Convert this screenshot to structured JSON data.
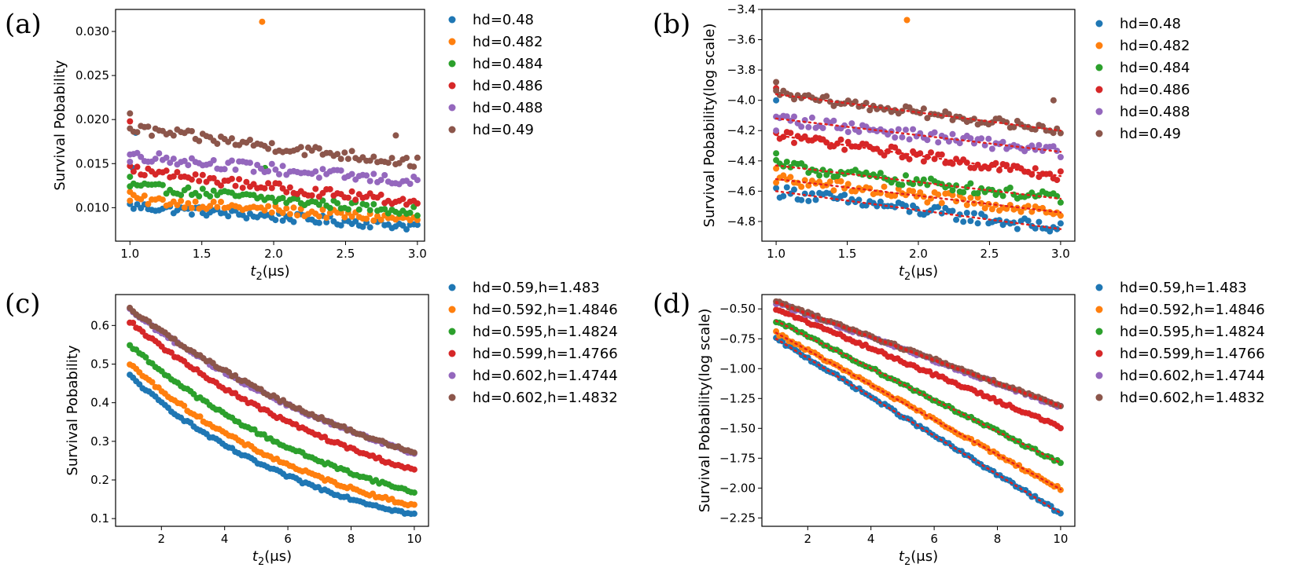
{
  "colors": [
    "#1f77b4",
    "#ff7f0e",
    "#2ca02c",
    "#d62728",
    "#9467bd",
    "#8c564b"
  ],
  "chart_data": [
    {
      "id": "a",
      "panel_label": "(a)",
      "type": "scatter",
      "xlabel_main": "t",
      "xlabel_sub": "2",
      "xlabel_unit": "(μs)",
      "ylabel": "Survival Pobability",
      "xlim": [
        0.9,
        3.05
      ],
      "ylim": [
        0.0062,
        0.0325
      ],
      "xticks": [
        "1.0",
        "1.5",
        "2.0",
        "2.5",
        "3.0"
      ],
      "yticks": [
        "0.010",
        "0.015",
        "0.020",
        "0.025",
        "0.030"
      ],
      "legend_position": "right",
      "x_range": [
        1.0,
        3.0
      ],
      "n_points": 80,
      "series": [
        {
          "name": "hd=0.48",
          "start": 0.0102,
          "end": 0.0079,
          "noise": 0.0005,
          "outliers": [
            [
              1.02,
              0.0145
            ],
            [
              1.04,
              0.0185
            ]
          ]
        },
        {
          "name": "hd=0.482",
          "start": 0.011,
          "end": 0.0086,
          "noise": 0.0005,
          "outliers": [
            [
              1.92,
              0.0311
            ],
            [
              1.0,
              0.0118
            ]
          ]
        },
        {
          "name": "hd=0.484",
          "start": 0.0125,
          "end": 0.0096,
          "noise": 0.0005,
          "outliers": [
            [
              1.0,
              0.0135
            ],
            [
              1.94,
              0.0145
            ]
          ]
        },
        {
          "name": "hd=0.486",
          "start": 0.0143,
          "end": 0.0106,
          "noise": 0.0005,
          "outliers": [
            [
              1.0,
              0.0198
            ]
          ]
        },
        {
          "name": "hd=0.488",
          "start": 0.016,
          "end": 0.0129,
          "noise": 0.0006,
          "outliers": [
            [
              1.0,
              0.0152
            ]
          ]
        },
        {
          "name": "hd=0.49",
          "start": 0.019,
          "end": 0.0151,
          "noise": 0.0006,
          "outliers": [
            [
              1.0,
              0.0207
            ],
            [
              2.85,
              0.0182
            ]
          ]
        }
      ]
    },
    {
      "id": "b",
      "panel_label": "(b)",
      "type": "scatter",
      "xlabel_main": "t",
      "xlabel_sub": "2",
      "xlabel_unit": "(μs)",
      "ylabel": "Survival Pobability(log scale)",
      "xlim": [
        0.9,
        3.1
      ],
      "ylim": [
        -4.93,
        -3.4
      ],
      "xticks": [
        "1.0",
        "1.5",
        "2.0",
        "2.5",
        "3.0"
      ],
      "yticks": [
        "−4.8",
        "−4.6",
        "−4.4",
        "−4.2",
        "−4.0",
        "−3.8",
        "−3.6",
        "−3.4"
      ],
      "legend_position": "right",
      "fit_lines": "dotted red",
      "x_range": [
        1.0,
        3.0
      ],
      "n_points": 80,
      "series": [
        {
          "name": "hd=0.48",
          "start": -4.6,
          "end": -4.85,
          "noise": 0.04,
          "outliers": [
            [
              1.0,
              -4.0
            ]
          ]
        },
        {
          "name": "hd=0.482",
          "start": -4.52,
          "end": -4.74,
          "noise": 0.04,
          "outliers": [
            [
              1.92,
              -3.47
            ],
            [
              1.0,
              -4.45
            ]
          ]
        },
        {
          "name": "hd=0.484",
          "start": -4.43,
          "end": -4.65,
          "noise": 0.035,
          "outliers": [
            [
              1.0,
              -4.35
            ]
          ]
        },
        {
          "name": "hd=0.486",
          "start": -4.23,
          "end": -4.5,
          "noise": 0.035,
          "outliers": [
            [
              1.0,
              -3.92
            ]
          ]
        },
        {
          "name": "hd=0.488",
          "start": -4.12,
          "end": -4.34,
          "noise": 0.035,
          "outliers": [
            [
              1.0,
              -4.2
            ]
          ]
        },
        {
          "name": "hd=0.49",
          "start": -3.96,
          "end": -4.2,
          "noise": 0.03,
          "outliers": [
            [
              1.0,
              -3.88
            ],
            [
              2.95,
              -4.0
            ]
          ]
        }
      ]
    },
    {
      "id": "c",
      "panel_label": "(c)",
      "type": "scatter",
      "xlabel_main": "t",
      "xlabel_sub": "2",
      "xlabel_unit": "(μs)",
      "ylabel": "Survival Pobability",
      "xlim": [
        0.55,
        10.45
      ],
      "ylim": [
        0.08,
        0.68
      ],
      "xticks": [
        "2",
        "4",
        "6",
        "8",
        "10"
      ],
      "xtick_values": [
        2,
        4,
        6,
        8,
        10
      ],
      "yticks": [
        "0.1",
        "0.2",
        "0.3",
        "0.4",
        "0.5",
        "0.6"
      ],
      "legend_position": "right",
      "x_range": [
        1.0,
        10.0
      ],
      "n_points": 90,
      "series": [
        {
          "name": "hd=0.59,h=1.483",
          "start": 0.47,
          "end": 0.11,
          "noise": 0.004
        },
        {
          "name": "hd=0.592,h=1.4846",
          "start": 0.5,
          "end": 0.133,
          "noise": 0.004
        },
        {
          "name": "hd=0.595,h=1.4824",
          "start": 0.55,
          "end": 0.168,
          "noise": 0.004
        },
        {
          "name": "hd=0.599,h=1.4766",
          "start": 0.61,
          "end": 0.225,
          "noise": 0.004
        },
        {
          "name": "hd=0.602,h=1.4744",
          "start": 0.64,
          "end": 0.268,
          "noise": 0.004
        },
        {
          "name": "hd=0.602,h=1.4832",
          "start": 0.645,
          "end": 0.27,
          "noise": 0.004
        }
      ]
    },
    {
      "id": "d",
      "panel_label": "(d)",
      "type": "scatter",
      "xlabel_main": "t",
      "xlabel_sub": "2",
      "xlabel_unit": "(μs)",
      "ylabel": "Survival Pobability(log scale)",
      "xlim": [
        0.55,
        10.45
      ],
      "ylim": [
        -2.32,
        -0.38
      ],
      "xticks": [
        "2",
        "4",
        "6",
        "8",
        "10"
      ],
      "xtick_values": [
        2,
        4,
        6,
        8,
        10
      ],
      "yticks": [
        "−2.25",
        "−2.00",
        "−1.75",
        "−1.50",
        "−1.25",
        "−1.00",
        "−0.75",
        "−0.50"
      ],
      "legend_position": "right",
      "fit_lines": "dotted red",
      "x_range": [
        1.0,
        10.0
      ],
      "n_points": 90,
      "series": [
        {
          "name": "hd=0.59,h=1.483",
          "start": -0.75,
          "end": -2.21,
          "noise": 0.012
        },
        {
          "name": "hd=0.592,h=1.4846",
          "start": -0.7,
          "end": -2.01,
          "noise": 0.012
        },
        {
          "name": "hd=0.595,h=1.4824",
          "start": -0.6,
          "end": -1.79,
          "noise": 0.012
        },
        {
          "name": "hd=0.599,h=1.4766",
          "start": -0.5,
          "end": -1.49,
          "noise": 0.012
        },
        {
          "name": "hd=0.602,h=1.4744",
          "start": -0.45,
          "end": -1.32,
          "noise": 0.012
        },
        {
          "name": "hd=0.602,h=1.4832",
          "start": -0.44,
          "end": -1.31,
          "noise": 0.012
        }
      ]
    }
  ]
}
